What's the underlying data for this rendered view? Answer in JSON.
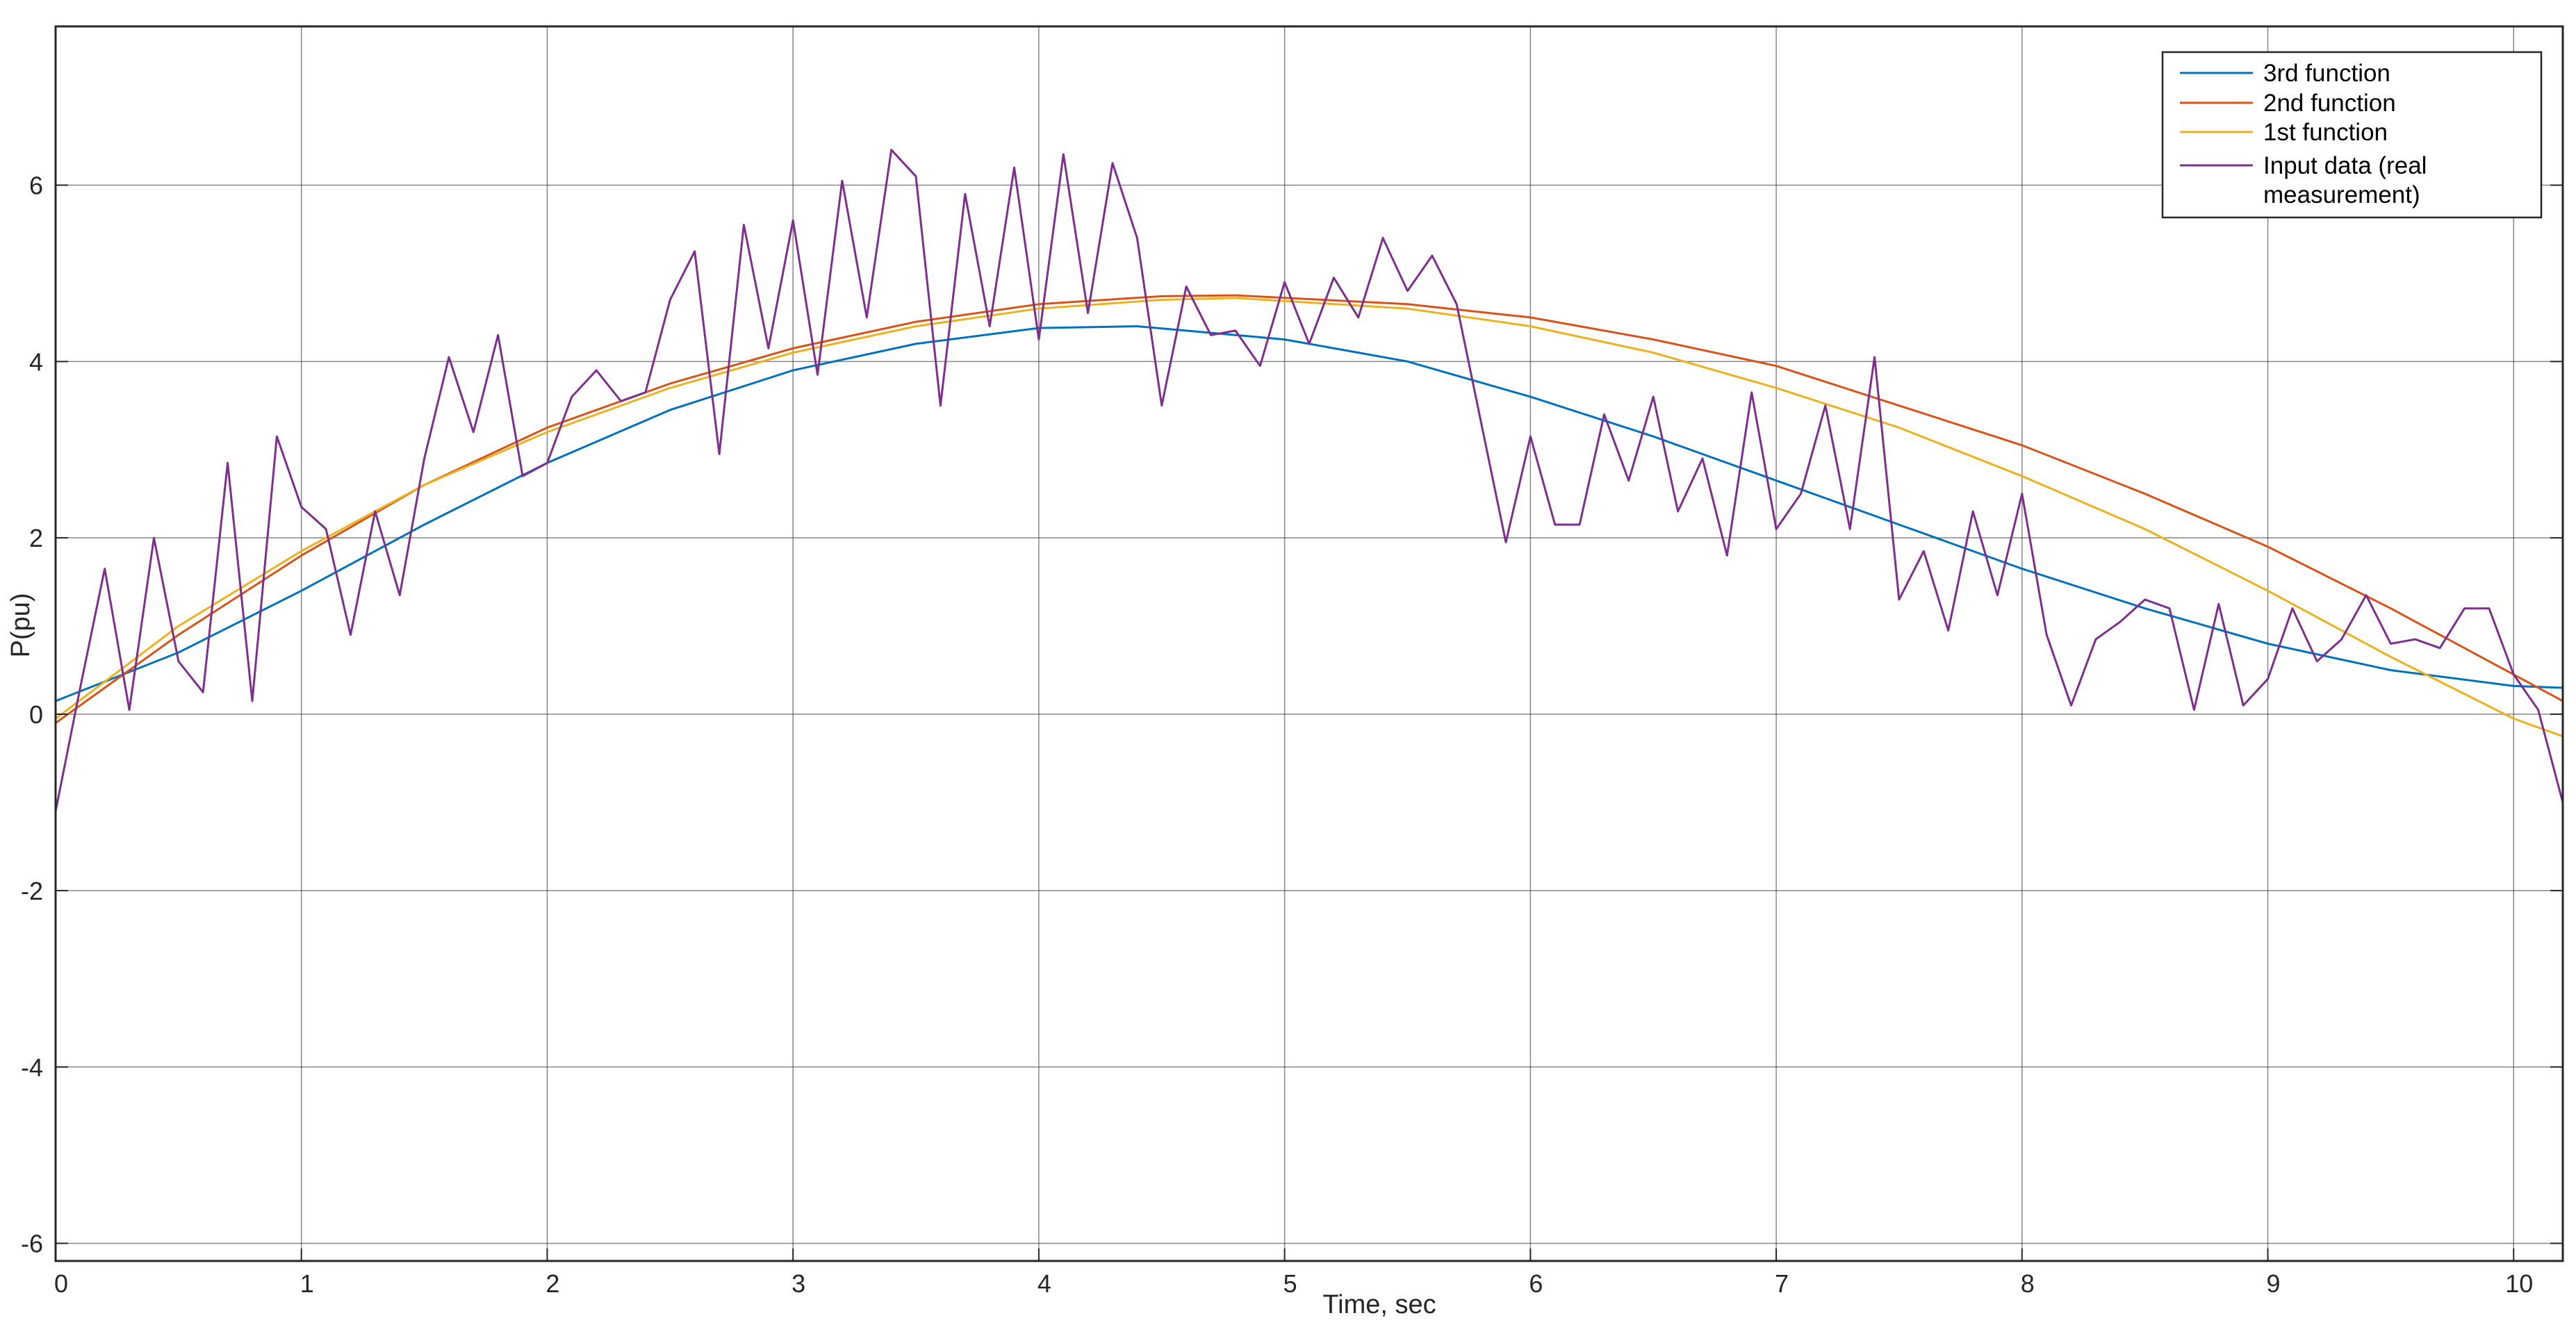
{
  "chart_data": {
    "type": "line",
    "title": "",
    "xlabel": "Time, sec",
    "ylabel": "P(pu)",
    "xlim": [
      0,
      10.2
    ],
    "ylim": [
      -6.2,
      7.8
    ],
    "xticks": [
      0,
      1,
      2,
      3,
      4,
      5,
      6,
      7,
      8,
      9,
      10
    ],
    "yticks": [
      -6,
      -4,
      -2,
      0,
      2,
      4,
      6
    ],
    "xtick_labels": [
      "0",
      "1",
      "2",
      "3",
      "4",
      "5",
      "6",
      "7",
      "8",
      "9",
      "10"
    ],
    "ytick_labels": [
      "-6",
      "-4",
      "-2",
      "0",
      "2",
      "4",
      "6"
    ],
    "grid": true,
    "legend_position": "top-right",
    "series": [
      {
        "name": "3rd function",
        "color": "#0072BD",
        "x": [
          0,
          0.5,
          1,
          1.5,
          2,
          2.5,
          3,
          3.5,
          4,
          4.4,
          5,
          5.5,
          6,
          6.5,
          7,
          7.5,
          8,
          8.5,
          9,
          9.5,
          10,
          10.2
        ],
        "y": [
          0.15,
          0.7,
          1.4,
          2.15,
          2.85,
          3.45,
          3.9,
          4.2,
          4.38,
          4.4,
          4.25,
          4.0,
          3.6,
          3.15,
          2.65,
          2.15,
          1.65,
          1.2,
          0.8,
          0.5,
          0.32,
          0.3
        ]
      },
      {
        "name": "2nd function",
        "color": "#D95319",
        "x": [
          0,
          0.5,
          1,
          1.5,
          2,
          2.5,
          3,
          3.5,
          4,
          4.5,
          4.8,
          5.5,
          6,
          6.5,
          7,
          7.5,
          8,
          8.5,
          9,
          9.5,
          10,
          10.2
        ],
        "y": [
          -0.1,
          0.9,
          1.8,
          2.6,
          3.25,
          3.75,
          4.15,
          4.45,
          4.65,
          4.74,
          4.75,
          4.65,
          4.5,
          4.25,
          3.95,
          3.5,
          3.05,
          2.5,
          1.9,
          1.2,
          0.45,
          0.15
        ]
      },
      {
        "name": "1st function",
        "color": "#EDB120",
        "x": [
          0,
          0.5,
          1,
          1.5,
          2,
          2.5,
          3,
          3.5,
          4,
          4.5,
          4.8,
          5.5,
          6,
          6.5,
          7,
          7.5,
          8,
          8.5,
          9,
          9.5,
          10,
          10.2
        ],
        "y": [
          -0.05,
          1.0,
          1.85,
          2.6,
          3.2,
          3.7,
          4.1,
          4.4,
          4.6,
          4.7,
          4.72,
          4.6,
          4.4,
          4.1,
          3.7,
          3.25,
          2.7,
          2.1,
          1.4,
          0.65,
          -0.05,
          -0.25
        ]
      },
      {
        "name": "Input data (real measurement)",
        "color": "#7E2F8E",
        "x": [
          0,
          0.1,
          0.2,
          0.3,
          0.4,
          0.5,
          0.6,
          0.7,
          0.8,
          0.9,
          1.0,
          1.1,
          1.2,
          1.3,
          1.4,
          1.5,
          1.6,
          1.7,
          1.8,
          1.9,
          2.0,
          2.1,
          2.2,
          2.3,
          2.4,
          2.5,
          2.6,
          2.7,
          2.8,
          2.9,
          3.0,
          3.1,
          3.2,
          3.3,
          3.4,
          3.5,
          3.6,
          3.7,
          3.8,
          3.9,
          4.0,
          4.1,
          4.2,
          4.3,
          4.4,
          4.5,
          4.6,
          4.7,
          4.8,
          4.9,
          5.0,
          5.1,
          5.2,
          5.3,
          5.4,
          5.5,
          5.6,
          5.7,
          5.8,
          5.9,
          6.0,
          6.1,
          6.2,
          6.3,
          6.4,
          6.5,
          6.6,
          6.7,
          6.8,
          6.9,
          7.0,
          7.1,
          7.2,
          7.3,
          7.4,
          7.5,
          7.6,
          7.7,
          7.8,
          7.9,
          8.0,
          8.1,
          8.2,
          8.3,
          8.4,
          8.5,
          8.6,
          8.7,
          8.8,
          8.9,
          9.0,
          9.1,
          9.2,
          9.3,
          9.4,
          9.5,
          9.6,
          9.7,
          9.8,
          9.9,
          10.0,
          10.1,
          10.2
        ],
        "y": [
          -1.1,
          0.3,
          1.65,
          0.05,
          2.0,
          0.6,
          0.25,
          2.85,
          0.15,
          3.15,
          2.35,
          2.1,
          0.9,
          2.3,
          1.35,
          2.9,
          4.05,
          3.2,
          4.3,
          2.7,
          2.85,
          3.6,
          3.9,
          3.55,
          3.65,
          4.7,
          5.25,
          2.95,
          5.55,
          4.15,
          5.6,
          3.85,
          6.05,
          4.5,
          6.4,
          6.1,
          3.5,
          5.9,
          4.4,
          6.2,
          4.25,
          6.35,
          4.55,
          6.25,
          5.4,
          3.5,
          4.85,
          4.3,
          4.35,
          3.95,
          4.9,
          4.2,
          4.95,
          4.5,
          5.4,
          4.8,
          5.2,
          4.65,
          3.3,
          1.95,
          3.15,
          2.15,
          2.15,
          3.4,
          2.65,
          3.6,
          2.3,
          2.9,
          1.8,
          3.65,
          2.1,
          2.5,
          3.5,
          2.1,
          4.05,
          1.3,
          1.85,
          0.95,
          2.3,
          1.35,
          2.5,
          0.9,
          0.1,
          0.85,
          1.05,
          1.3,
          1.2,
          0.05,
          1.25,
          0.1,
          0.4,
          1.2,
          0.6,
          0.85,
          1.35,
          0.8,
          0.85,
          0.75,
          1.2,
          1.2,
          0.45,
          0.05,
          -1.0
        ]
      }
    ],
    "legend": {
      "entries": [
        [
          "3rd function"
        ],
        [
          "2nd function"
        ],
        [
          "1st function"
        ],
        [
          "Input data (real",
          "measurement)"
        ]
      ]
    }
  }
}
